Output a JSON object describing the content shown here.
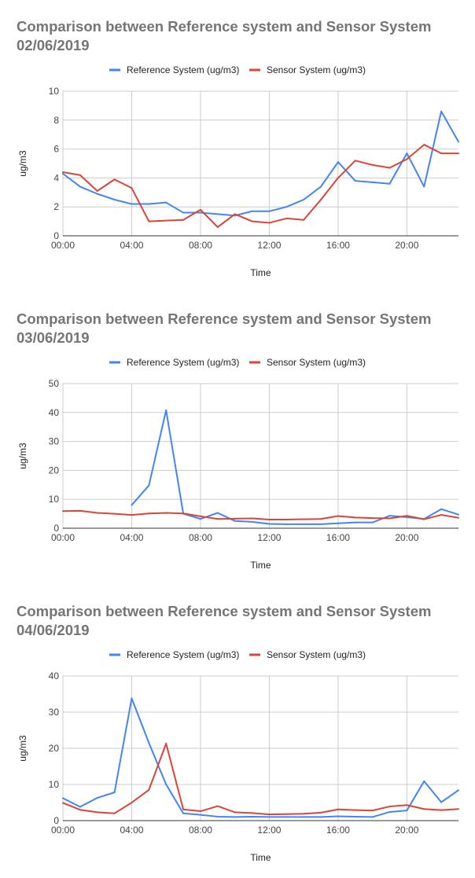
{
  "chart_data": [
    {
      "type": "line",
      "title_lines": [
        "Comparison between  Reference system and Sensor System",
        "02/06/2019"
      ],
      "xlabel": "Time",
      "ylabel": "ug/m3",
      "ylim": [
        0,
        10
      ],
      "yticks": [
        "0",
        "2",
        "4",
        "6",
        "8",
        "10"
      ],
      "xticks": [
        "00:00",
        "04:00",
        "08:00",
        "12:00",
        "16:00",
        "20:00"
      ],
      "legend": "top-center",
      "series": [
        {
          "name": "Reference System (ug/m3)",
          "color": "#4285F4",
          "points": [
            [
              0,
              4.3
            ],
            [
              1,
              3.4
            ],
            [
              2,
              2.9
            ],
            [
              3,
              2.5
            ],
            [
              4,
              2.2
            ],
            [
              5,
              2.2
            ],
            [
              6,
              2.3
            ],
            [
              7,
              1.6
            ],
            [
              8,
              1.6
            ],
            [
              9,
              1.5
            ],
            [
              10,
              1.4
            ],
            [
              11,
              1.7
            ],
            [
              12,
              1.7
            ],
            [
              13,
              2.0
            ],
            [
              14,
              2.5
            ],
            [
              15,
              3.4
            ],
            [
              16,
              5.1
            ],
            [
              17,
              3.8
            ],
            [
              18,
              3.7
            ],
            [
              19,
              3.6
            ],
            [
              20,
              5.7
            ],
            [
              21,
              3.4
            ],
            [
              22,
              8.6
            ],
            [
              23,
              6.5
            ]
          ]
        },
        {
          "name": "Sensor System (ug/m3)",
          "color": "#DB4437",
          "points": [
            [
              0,
              4.4
            ],
            [
              1,
              4.2
            ],
            [
              2,
              3.1
            ],
            [
              3,
              3.9
            ],
            [
              4,
              3.3
            ],
            [
              5,
              1.0
            ],
            [
              6,
              1.05
            ],
            [
              7,
              1.1
            ],
            [
              8,
              1.8
            ],
            [
              9,
              0.6
            ],
            [
              10,
              1.5
            ],
            [
              11,
              1.0
            ],
            [
              12,
              0.9
            ],
            [
              13,
              1.2
            ],
            [
              14,
              1.1
            ],
            [
              15,
              2.5
            ],
            [
              16,
              4.0
            ],
            [
              17,
              5.2
            ],
            [
              18,
              4.9
            ],
            [
              19,
              4.7
            ],
            [
              20,
              5.3
            ],
            [
              21,
              6.3
            ],
            [
              22,
              5.7
            ],
            [
              23,
              5.7
            ]
          ]
        }
      ]
    },
    {
      "type": "line",
      "title_lines": [
        "Comparison between  Reference system and Sensor System",
        "03/06/2019"
      ],
      "xlabel": "Time",
      "ylabel": "ug/m3",
      "ylim": [
        0,
        50
      ],
      "yticks": [
        "0",
        "10",
        "20",
        "30",
        "40",
        "50"
      ],
      "xticks": [
        "00:00",
        "04:00",
        "08:00",
        "12:00",
        "16:00",
        "20:00"
      ],
      "legend": "top-center",
      "series": [
        {
          "name": "Reference System (ug/m3)",
          "color": "#4285F4",
          "points": [
            [
              4,
              8.0
            ],
            [
              5,
              14.8
            ],
            [
              6,
              40.8
            ],
            [
              7,
              5.0
            ],
            [
              8,
              3.2
            ],
            [
              9,
              5.3
            ],
            [
              10,
              2.5
            ],
            [
              11,
              2.2
            ],
            [
              12,
              1.5
            ],
            [
              13,
              1.4
            ],
            [
              14,
              1.4
            ],
            [
              15,
              1.4
            ],
            [
              16,
              1.7
            ],
            [
              17,
              2.0
            ],
            [
              18,
              2.0
            ],
            [
              19,
              4.3
            ],
            [
              20,
              3.8
            ],
            [
              21,
              3.2
            ],
            [
              22,
              6.6
            ],
            [
              23,
              4.7
            ]
          ]
        },
        {
          "name": "Sensor System (ug/m3)",
          "color": "#DB4437",
          "points": [
            [
              0,
              5.9
            ],
            [
              1,
              6.0
            ],
            [
              2,
              5.3
            ],
            [
              3,
              5.0
            ],
            [
              4,
              4.6
            ],
            [
              5,
              5.1
            ],
            [
              6,
              5.3
            ],
            [
              7,
              5.1
            ],
            [
              8,
              4.1
            ],
            [
              9,
              3.2
            ],
            [
              10,
              3.3
            ],
            [
              11,
              3.4
            ],
            [
              12,
              3.0
            ],
            [
              13,
              3.0
            ],
            [
              14,
              3.1
            ],
            [
              15,
              3.2
            ],
            [
              16,
              4.2
            ],
            [
              17,
              3.7
            ],
            [
              18,
              3.5
            ],
            [
              19,
              3.4
            ],
            [
              20,
              4.3
            ],
            [
              21,
              3.1
            ],
            [
              22,
              4.6
            ],
            [
              23,
              3.6
            ]
          ]
        }
      ]
    },
    {
      "type": "line",
      "title_lines": [
        "Comparison between  Reference system and Sensor System",
        "04/06/2019"
      ],
      "xlabel": "Time",
      "ylabel": "ug/m3",
      "ylim": [
        0,
        40
      ],
      "yticks": [
        "0",
        "10",
        "20",
        "30",
        "40"
      ],
      "xticks": [
        "00:00",
        "04:00",
        "08:00",
        "12:00",
        "16:00",
        "20:00"
      ],
      "legend": "top-center",
      "series": [
        {
          "name": "Reference System (ug/m3)",
          "color": "#4285F4",
          "points": [
            [
              0,
              6.2
            ],
            [
              1,
              3.8
            ],
            [
              2,
              6.3
            ],
            [
              3,
              7.8
            ],
            [
              4,
              33.8
            ],
            [
              5,
              21.5
            ],
            [
              6,
              10.0
            ],
            [
              7,
              2.0
            ],
            [
              8,
              1.6
            ],
            [
              9,
              1.1
            ],
            [
              10,
              1.0
            ],
            [
              11,
              1.1
            ],
            [
              12,
              1.0
            ],
            [
              13,
              1.0
            ],
            [
              14,
              1.0
            ],
            [
              15,
              1.0
            ],
            [
              16,
              1.2
            ],
            [
              17,
              1.1
            ],
            [
              18,
              1.0
            ],
            [
              19,
              2.4
            ],
            [
              20,
              2.8
            ],
            [
              21,
              10.9
            ],
            [
              22,
              5.1
            ],
            [
              23,
              8.4
            ]
          ]
        },
        {
          "name": "Sensor System (ug/m3)",
          "color": "#DB4437",
          "points": [
            [
              0,
              4.9
            ],
            [
              1,
              3.0
            ],
            [
              2,
              2.3
            ],
            [
              3,
              2.0
            ],
            [
              4,
              5.0
            ],
            [
              5,
              8.5
            ],
            [
              6,
              21.3
            ],
            [
              7,
              3.1
            ],
            [
              8,
              2.6
            ],
            [
              9,
              4.0
            ],
            [
              10,
              2.3
            ],
            [
              11,
              2.1
            ],
            [
              12,
              1.7
            ],
            [
              13,
              1.8
            ],
            [
              14,
              1.9
            ],
            [
              15,
              2.2
            ],
            [
              16,
              3.1
            ],
            [
              17,
              2.9
            ],
            [
              18,
              2.8
            ],
            [
              19,
              3.9
            ],
            [
              20,
              4.3
            ],
            [
              21,
              3.2
            ],
            [
              22,
              2.9
            ],
            [
              23,
              3.2
            ]
          ]
        }
      ]
    }
  ]
}
